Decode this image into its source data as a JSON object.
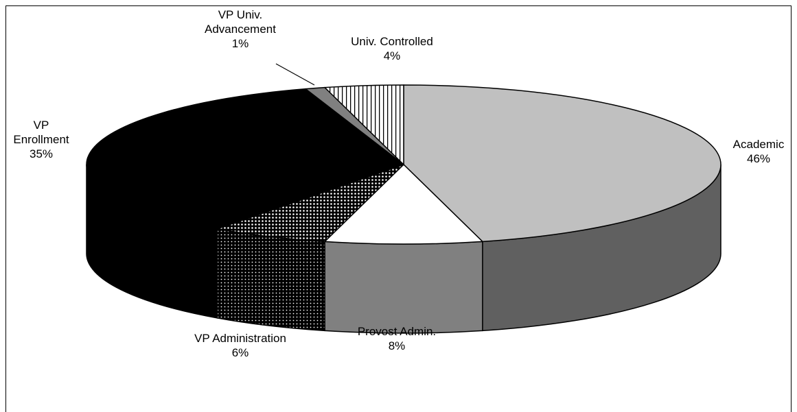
{
  "chart_data": {
    "type": "pie3d",
    "categories": [
      "Academic",
      "Provost Admin.",
      "VP Administration",
      "VP Enrollment",
      "VP Univ. Advancement",
      "Univ. Controlled"
    ],
    "values": [
      46,
      8,
      6,
      35,
      1,
      4
    ],
    "value_labels": [
      "46%",
      "8%",
      "6%",
      "35%",
      "1%",
      "4%"
    ],
    "colors": [
      "#c0c0c0",
      "#ffffff",
      "#000000",
      "#000000",
      "#808080",
      "#ffffff"
    ],
    "side_colors": [
      "#606060",
      "#808080",
      "#000000",
      "#000000",
      "#505050",
      "#ffffff"
    ],
    "patterns": [
      null,
      null,
      "dots",
      null,
      null,
      "vertical-stripes"
    ]
  }
}
